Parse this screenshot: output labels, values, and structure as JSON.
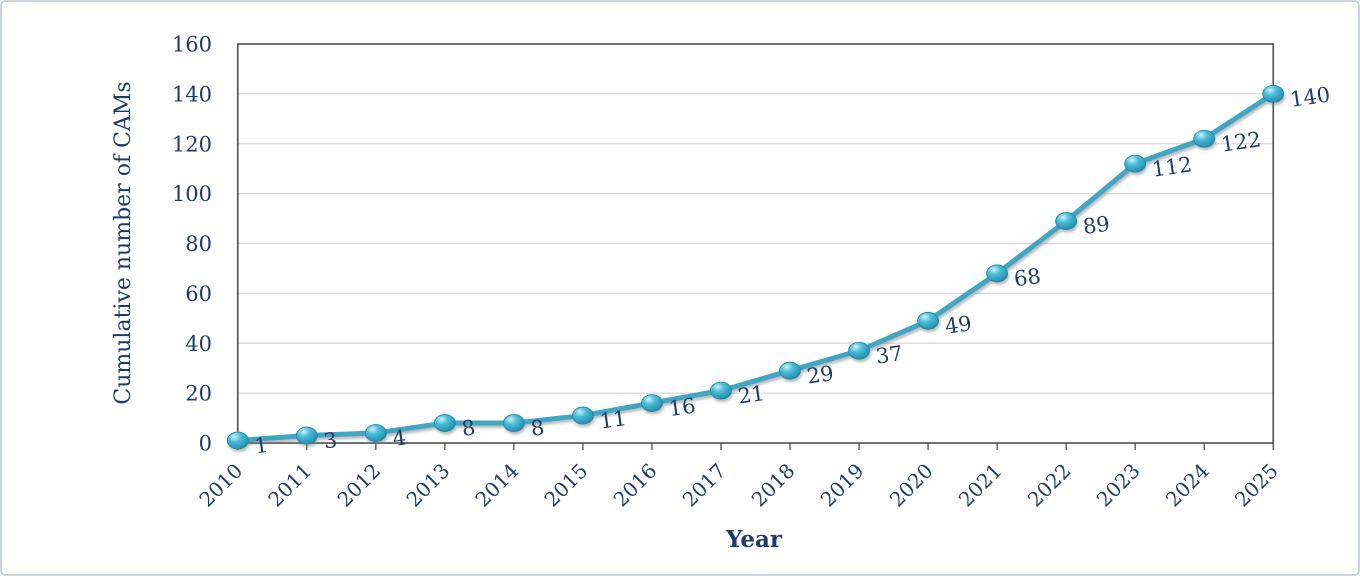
{
  "chart_data": {
    "type": "line",
    "title": "",
    "xlabel": "Year",
    "ylabel": "Cumulative number of CAMs",
    "categories": [
      "2010",
      "2011",
      "2012",
      "2013",
      "2014",
      "2015",
      "2016",
      "2017",
      "2018",
      "2019",
      "2020",
      "2021",
      "2022",
      "2023",
      "2024",
      "2025"
    ],
    "values": [
      1,
      3,
      4,
      8,
      8,
      11,
      16,
      21,
      29,
      37,
      49,
      68,
      89,
      112,
      122,
      140
    ],
    "data_labels": [
      "1",
      "3",
      "4",
      "8",
      "8",
      "11",
      "16",
      "21",
      "29",
      "37",
      "49",
      "68",
      "89",
      "112",
      "122",
      "140"
    ],
    "ylim": [
      0,
      160
    ],
    "ytick_step": 20,
    "grid": "horizontal",
    "legend": "none",
    "colors": {
      "line": "#3fa6c3",
      "marker_mid": "#44b7d3",
      "marker_highlight": "#c9eef5",
      "marker_edge": "#1f86a7",
      "text_navy": "#203a68",
      "gridline": "#d9d9d9",
      "plot_border": "#4f4f4f",
      "figure_border": "#ccd5df"
    }
  }
}
